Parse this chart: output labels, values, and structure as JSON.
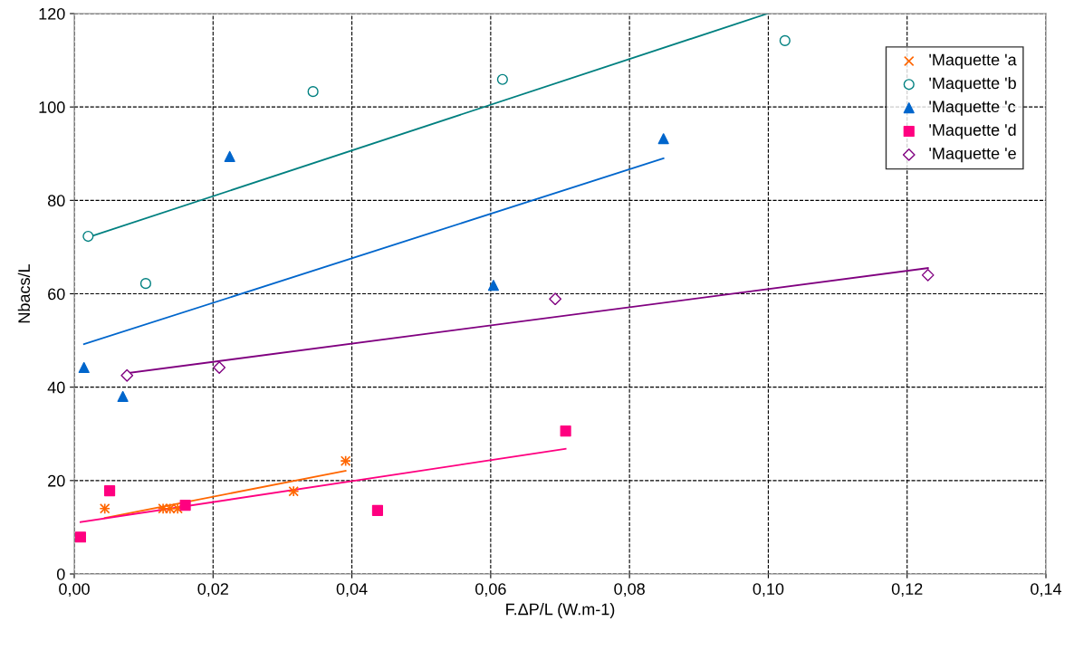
{
  "chart_data": {
    "type": "scatter",
    "xlabel": "F.ΔP/L (W.m-1)",
    "ylabel": "Nbacs/L",
    "xlim": [
      0,
      0.14
    ],
    "ylim": [
      0,
      120
    ],
    "xticks": [
      {
        "value": 0,
        "label": "0,00"
      },
      {
        "value": 0.02,
        "label": "0,02"
      },
      {
        "value": 0.04,
        "label": "0,04"
      },
      {
        "value": 0.06,
        "label": "0,06"
      },
      {
        "value": 0.08,
        "label": "0,08"
      },
      {
        "value": 0.1,
        "label": "0,10"
      },
      {
        "value": 0.12,
        "label": "0,12"
      },
      {
        "value": 0.14,
        "label": "0,14"
      }
    ],
    "yticks": [
      0,
      20,
      40,
      60,
      80,
      100,
      120
    ],
    "grid": true,
    "legend": "top right",
    "series": [
      {
        "name": "'Maquette 'a",
        "color": "#ff6600",
        "marker": "cross",
        "x": [
          0.0044,
          0.0128,
          0.0138,
          0.0149,
          0.0316,
          0.0391
        ],
        "values": [
          14.0,
          14.0,
          14.0,
          14.0,
          17.7,
          24.2
        ]
      },
      {
        "name": "'Maquette 'b",
        "color": "#008080",
        "marker": "circle",
        "x": [
          0.002,
          0.0103,
          0.0344,
          0.0617,
          0.1024
        ],
        "values": [
          72.3,
          62.2,
          103.3,
          105.9,
          114.2
        ]
      },
      {
        "name": "'Maquette 'c",
        "color": "#0066cc",
        "marker": "triangle",
        "x": [
          0.0014,
          0.007,
          0.0224,
          0.0604,
          0.0849
        ],
        "values": [
          44.2,
          38.0,
          89.4,
          61.8,
          93.2
        ]
      },
      {
        "name": "'Maquette 'd",
        "color": "#ff0080",
        "marker": "square",
        "x": [
          0.0009,
          0.0051,
          0.016,
          0.0437,
          0.0708
        ],
        "values": [
          7.9,
          17.8,
          14.7,
          13.6,
          30.6
        ]
      },
      {
        "name": "'Maquette 'e",
        "color": "#800080",
        "marker": "diamond",
        "x": [
          0.0076,
          0.0209,
          0.0693,
          0.123
        ],
        "values": [
          42.5,
          44.2,
          58.9,
          64.0
        ]
      },
      {
        "type": "line",
        "color": "#ff6600",
        "x": [
          0.0044,
          0.0391
        ],
        "values": [
          12.0,
          22.1
        ]
      },
      {
        "type": "line",
        "color": "#008080",
        "x": [
          0.002,
          0.0999
        ],
        "values": [
          72.1,
          120
        ]
      },
      {
        "type": "line",
        "color": "#0066cc",
        "x": [
          0.0014,
          0.0849
        ],
        "values": [
          49.2,
          89.0
        ]
      },
      {
        "type": "line",
        "color": "#ff0080",
        "x": [
          0.0009,
          0.0708
        ],
        "values": [
          11.1,
          26.8
        ]
      },
      {
        "type": "line",
        "color": "#800080",
        "x": [
          0.0076,
          0.123
        ],
        "values": [
          43.0,
          65.5
        ]
      }
    ]
  }
}
